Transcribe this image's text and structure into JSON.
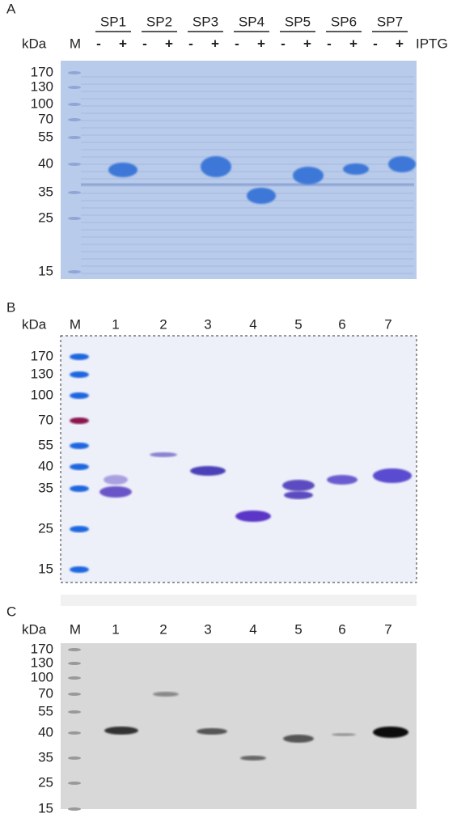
{
  "panels": [
    {
      "label": "A",
      "kda_label": "kDa",
      "marker_lane": "M",
      "groups": [
        "SP1",
        "SP2",
        "SP3",
        "SP4",
        "SP5",
        "SP6",
        "SP7"
      ],
      "lanes": [
        "-",
        "+",
        "-",
        "+",
        "-",
        "+",
        "-",
        "+",
        "-",
        "+",
        "-",
        "+",
        "-",
        "+"
      ],
      "induction_label": "IPTG",
      "markers": [
        170,
        130,
        100,
        70,
        55,
        40,
        35,
        25,
        15
      ]
    },
    {
      "label": "B",
      "kda_label": "kDa",
      "marker_lane": "M",
      "lanes": [
        "1",
        "2",
        "3",
        "4",
        "5",
        "6",
        "7"
      ],
      "markers": [
        170,
        130,
        100,
        70,
        55,
        40,
        35,
        25,
        15
      ]
    },
    {
      "label": "C",
      "kda_label": "kDa",
      "marker_lane": "M",
      "lanes": [
        "1",
        "2",
        "3",
        "4",
        "5",
        "6",
        "7"
      ],
      "markers": [
        170,
        130,
        100,
        70,
        55,
        40,
        35,
        25,
        15
      ]
    }
  ]
}
